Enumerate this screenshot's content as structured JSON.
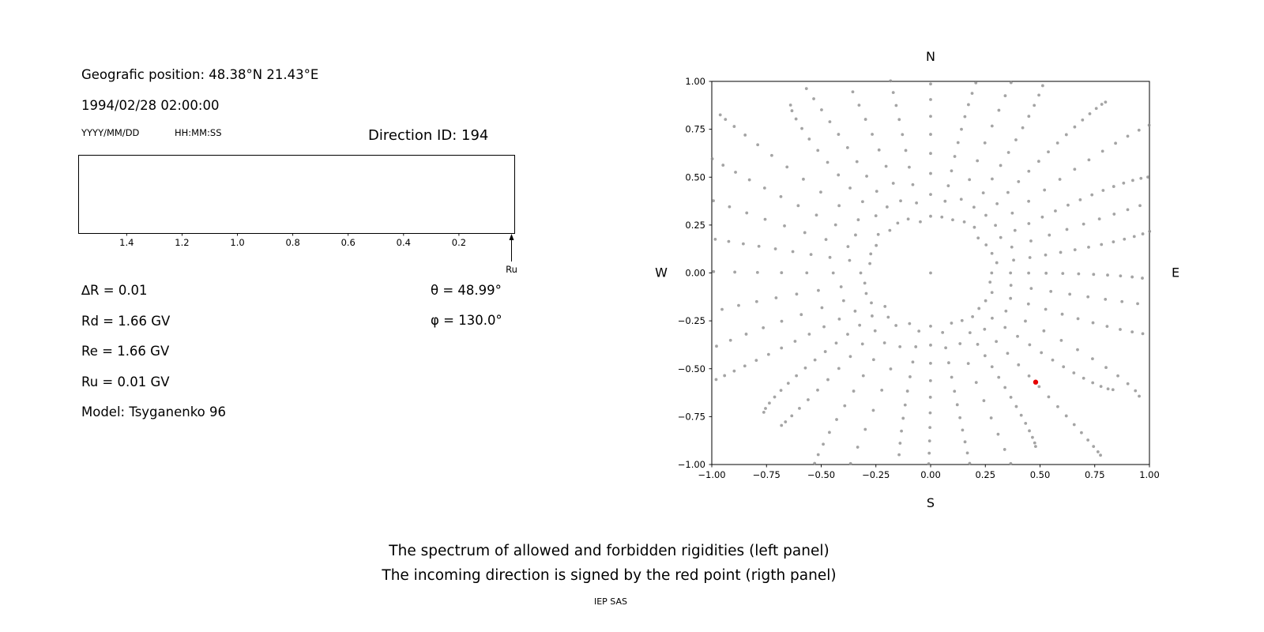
{
  "left_panel": {
    "geo_position": "Geografic position: 48.38°N 21.43°E",
    "datetime": "1994/02/28 02:00:00",
    "date_format_hint": "YYYY/MM/DD",
    "time_format_hint": "HH:MM:SS",
    "direction_id": "Direction ID: 194",
    "params": {
      "delta_r": "∆R = 0.01",
      "rd": "Rd = 1.66 GV",
      "re": "Re = 1.66 GV",
      "ru": "Ru = 0.01 GV",
      "model": "Model: Tsyganenko 96",
      "theta": "θ = 48.99°",
      "phi": "φ = 130.0°"
    }
  },
  "captions": {
    "line1": "The spectrum of allowed and forbidden rigidities (left panel)",
    "line2": "The incoming direction is signed by the red point (rigth panel)",
    "credit": "IEP SAS"
  },
  "chart_data": [
    {
      "id": "rigidity-spectrum",
      "type": "line",
      "title": "",
      "xlabel": "",
      "ylabel": "",
      "x_ticks": [
        1.4,
        1.2,
        1.0,
        0.8,
        0.6,
        0.4,
        0.2
      ],
      "x_range": [
        1.575,
        0.0
      ],
      "x_axis_reversed": true,
      "series": [],
      "annotations": [
        {
          "type": "up-arrow",
          "x": 0.01,
          "label": "Ru"
        }
      ],
      "note": "axes box is empty - no forbidden rigidity bands drawn"
    },
    {
      "id": "incoming-direction-map",
      "type": "scatter",
      "xlim": [
        -1.0,
        1.0
      ],
      "ylim": [
        -1.0,
        1.0
      ],
      "x_ticks": [
        -1.0,
        -0.75,
        -0.5,
        -0.25,
        0.0,
        0.25,
        0.5,
        0.75,
        1.0
      ],
      "y_ticks": [
        1.0,
        0.75,
        0.5,
        0.25,
        0.0,
        -0.25,
        -0.5,
        -0.75,
        -1.0
      ],
      "grid": false,
      "legend": null,
      "compass": {
        "top": "N",
        "bottom": "S",
        "left": "W",
        "right": "E"
      },
      "gray_spokes": {
        "angles_deg": [
          0,
          10,
          20,
          30,
          40,
          50,
          60,
          70,
          80,
          90,
          100,
          110,
          120,
          130,
          140,
          150,
          160,
          170,
          180,
          190,
          200,
          210,
          220,
          230,
          240,
          250,
          260,
          270,
          280,
          290,
          300,
          310,
          320,
          330,
          340,
          350
        ],
        "inner_radius": 0.27,
        "outer_radius_range": [
          1.02,
          1.35
        ],
        "dots_per_spoke": [
          12,
          16
        ],
        "outer_cluster_exponent": 1.4,
        "color": "#8a8a8a",
        "dot_radius_px": 1.9,
        "center_dot": true
      },
      "red_point": {
        "x": 0.48,
        "y": -0.57,
        "color": "#e60000",
        "radius_px": 3.2
      }
    }
  ]
}
